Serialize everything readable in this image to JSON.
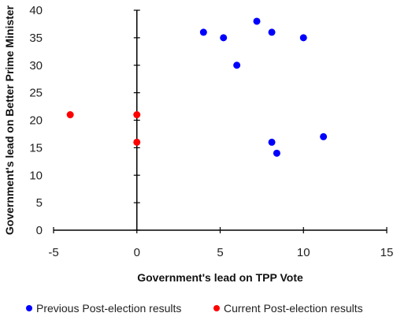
{
  "chart_data": {
    "type": "scatter",
    "xlabel": "Government's lead on TPP Vote",
    "ylabel": "Government's lead on Better Prime Minister",
    "xlim": [
      -5,
      15
    ],
    "ylim": [
      0,
      40
    ],
    "x_ticks": [
      -5,
      0,
      5,
      10,
      15
    ],
    "y_ticks": [
      0,
      5,
      10,
      15,
      20,
      25,
      30,
      35,
      40
    ],
    "grid": false,
    "legend_position": "bottom",
    "series": [
      {
        "name": "Previous Post-election results",
        "color": "#0000ff",
        "points": [
          {
            "x": 4,
            "y": 36
          },
          {
            "x": 5.2,
            "y": 35
          },
          {
            "x": 6,
            "y": 30
          },
          {
            "x": 7.2,
            "y": 38
          },
          {
            "x": 8.1,
            "y": 36
          },
          {
            "x": 10,
            "y": 35
          },
          {
            "x": 8.1,
            "y": 16
          },
          {
            "x": 8.4,
            "y": 14
          },
          {
            "x": 11.2,
            "y": 17
          }
        ]
      },
      {
        "name": "Current Post-election results",
        "color": "#ff0000",
        "points": [
          {
            "x": -4,
            "y": 21
          },
          {
            "x": 0,
            "y": 21
          },
          {
            "x": 0,
            "y": 16
          }
        ]
      }
    ]
  }
}
